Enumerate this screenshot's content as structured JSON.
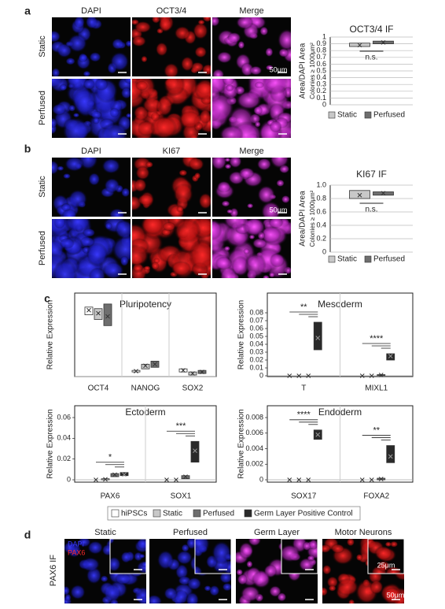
{
  "panel_a": {
    "label": "a",
    "columns": [
      "DAPI",
      "OCT3/4",
      "Merge"
    ],
    "rows": [
      "Static",
      "Perfused"
    ],
    "scale_bar": "50μm"
  },
  "panel_b": {
    "label": "b",
    "columns": [
      "DAPI",
      "KI67",
      "Merge"
    ],
    "rows": [
      "Static",
      "Perfused"
    ],
    "scale_bar": "50μm"
  },
  "panel_c": {
    "label": "c"
  },
  "panel_d": {
    "label": "d",
    "columns": [
      "Static",
      "Perfused",
      "Germ Layer",
      "Motor Neurons"
    ],
    "row": "PAX6 IF",
    "stain_labels": [
      "DAPI",
      "PAX6"
    ],
    "inset_scale_bar": "25μm",
    "scale_bar": "50μm"
  },
  "chart_data": [
    {
      "type": "box",
      "title": "OCT3/4 IF",
      "ylabel": "Area/DAPI Area",
      "ylabel_sub": "Colonies ≥ 1000μm²",
      "ylim": [
        0,
        1
      ],
      "yticks": [
        0,
        0.1,
        0.2,
        0.3,
        0.4,
        0.5,
        0.6,
        0.7,
        0.8,
        0.9,
        1
      ],
      "grid": true,
      "series": [
        {
          "name": "Static",
          "color": "#c8c8c8",
          "low": [
            0.86
          ],
          "high": [
            0.91
          ],
          "mean": [
            0.88
          ]
        },
        {
          "name": "Perfused",
          "color": "#6e6e6e",
          "low": [
            0.9
          ],
          "high": [
            0.94
          ],
          "mean": [
            0.92
          ]
        }
      ],
      "annotations": [
        {
          "text": "n.s.",
          "category": 0
        }
      ]
    },
    {
      "type": "box",
      "title": "KI67 IF",
      "ylabel": "Area/DAPI Area",
      "ylabel_sub": "Colonies ≥ 1000μm²",
      "ylim": [
        0,
        1
      ],
      "yticks": [
        0,
        0.2,
        0.4,
        0.6,
        0.8,
        {
          "value": 1,
          "label": "1.0"
        }
      ],
      "grid": true,
      "series": [
        {
          "name": "Static",
          "color": "#c8c8c8",
          "low": [
            0.8
          ],
          "high": [
            0.92
          ],
          "mean": [
            0.85
          ]
        },
        {
          "name": "Perfused",
          "color": "#6e6e6e",
          "low": [
            0.85
          ],
          "high": [
            0.9
          ],
          "mean": [
            0.88
          ]
        }
      ],
      "annotations": [
        {
          "text": "n.s.",
          "category": 0
        }
      ]
    },
    {
      "type": "box",
      "title": "Pluripotency",
      "ylabel": "Relative Expression",
      "ylim": [
        0,
        0.5
      ],
      "grid": false,
      "categories": [
        "OCT4",
        "NANOG",
        "SOX2"
      ],
      "series": [
        {
          "name": "hiPSCs",
          "color": "#ffffff",
          "low": [
            0.4,
            0.03,
            0.03
          ],
          "high": [
            0.45,
            0.04,
            0.05
          ],
          "mean": [
            0.43,
            0.035,
            0.04
          ]
        },
        {
          "name": "Static",
          "color": "#c8c8c8",
          "low": [
            0.37,
            0.05,
            0.01
          ],
          "high": [
            0.44,
            0.08,
            0.03
          ],
          "mean": [
            0.41,
            0.07,
            0.02
          ]
        },
        {
          "name": "Perfused",
          "color": "#6e6e6e",
          "low": [
            0.33,
            0.06,
            0.02
          ],
          "high": [
            0.47,
            0.1,
            0.04
          ],
          "mean": [
            0.39,
            0.08,
            0.03
          ]
        }
      ],
      "annotations": []
    },
    {
      "type": "box",
      "title": "Mesoderm",
      "ylabel": "Relative Expression",
      "ylim": [
        0,
        0.08
      ],
      "yticks": [
        0,
        0.01,
        0.02,
        0.03,
        0.04,
        0.05,
        0.06,
        0.07,
        0.08
      ],
      "grid": false,
      "categories": [
        "T",
        "MIXL1"
      ],
      "series": [
        {
          "name": "hiPSCs",
          "color": "#ffffff",
          "low": [
            0,
            0
          ],
          "high": [
            0,
            0
          ],
          "mean": [
            0,
            0
          ]
        },
        {
          "name": "Static",
          "color": "#c8c8c8",
          "low": [
            0,
            0
          ],
          "high": [
            0,
            0
          ],
          "mean": [
            0,
            0
          ]
        },
        {
          "name": "Perfused",
          "color": "#6e6e6e",
          "low": [
            0,
            0.0005
          ],
          "high": [
            0,
            0.0015
          ],
          "mean": [
            0,
            0.001
          ]
        },
        {
          "name": "Germ Layer Positive Control",
          "color": "#2a2a2a",
          "low": [
            0.033,
            0.02
          ],
          "high": [
            0.068,
            0.028
          ],
          "mean": [
            0.048,
            0.025
          ]
        }
      ],
      "annotations": [
        {
          "text": "**",
          "category": 0
        },
        {
          "text": "****",
          "category": 1
        }
      ]
    },
    {
      "type": "box",
      "title": "Ectoderm",
      "ylabel": "Relative Expression",
      "ylim": [
        0,
        0.06
      ],
      "yticks": [
        0,
        0.02,
        0.04,
        0.06
      ],
      "grid": false,
      "categories": [
        "PAX6",
        "SOX1"
      ],
      "series": [
        {
          "name": "hiPSCs",
          "color": "#ffffff",
          "low": [
            0,
            0
          ],
          "high": [
            0,
            0
          ],
          "mean": [
            0,
            0
          ]
        },
        {
          "name": "Static",
          "color": "#c8c8c8",
          "low": [
            0,
            0
          ],
          "high": [
            0.001,
            0
          ],
          "mean": [
            0.0005,
            0
          ]
        },
        {
          "name": "Perfused",
          "color": "#6e6e6e",
          "low": [
            0.003,
            0.001
          ],
          "high": [
            0.006,
            0.004
          ],
          "mean": [
            0.005,
            0.003
          ]
        },
        {
          "name": "Germ Layer Positive Control",
          "color": "#2a2a2a",
          "low": [
            0.004,
            0.017
          ],
          "high": [
            0.007,
            0.037
          ],
          "mean": [
            0.005,
            0.028
          ]
        }
      ],
      "annotations": [
        {
          "text": "*",
          "category": 0
        },
        {
          "text": "***",
          "category": 1
        }
      ]
    },
    {
      "type": "box",
      "title": "Endoderm",
      "ylabel": "Relative Expression",
      "ylim": [
        0,
        0.008
      ],
      "yticks": [
        0,
        0.002,
        0.004,
        0.006,
        0.008
      ],
      "grid": false,
      "categories": [
        "SOX17",
        "FOXA2"
      ],
      "series": [
        {
          "name": "hiPSCs",
          "color": "#ffffff",
          "low": [
            0,
            0
          ],
          "high": [
            0,
            0
          ],
          "mean": [
            0,
            0
          ]
        },
        {
          "name": "Static",
          "color": "#c8c8c8",
          "low": [
            0,
            0
          ],
          "high": [
            0,
            0
          ],
          "mean": [
            0,
            0
          ]
        },
        {
          "name": "Perfused",
          "color": "#6e6e6e",
          "low": [
            0,
            0
          ],
          "high": [
            0,
            0.0002
          ],
          "mean": [
            0,
            0.0001
          ]
        },
        {
          "name": "Germ Layer Positive Control",
          "color": "#2a2a2a",
          "low": [
            0.0052,
            0.0022
          ],
          "high": [
            0.0064,
            0.0044
          ],
          "mean": [
            0.0058,
            0.003
          ]
        }
      ],
      "annotations": [
        {
          "text": "****",
          "category": 0
        },
        {
          "text": "**",
          "category": 1
        }
      ]
    }
  ]
}
